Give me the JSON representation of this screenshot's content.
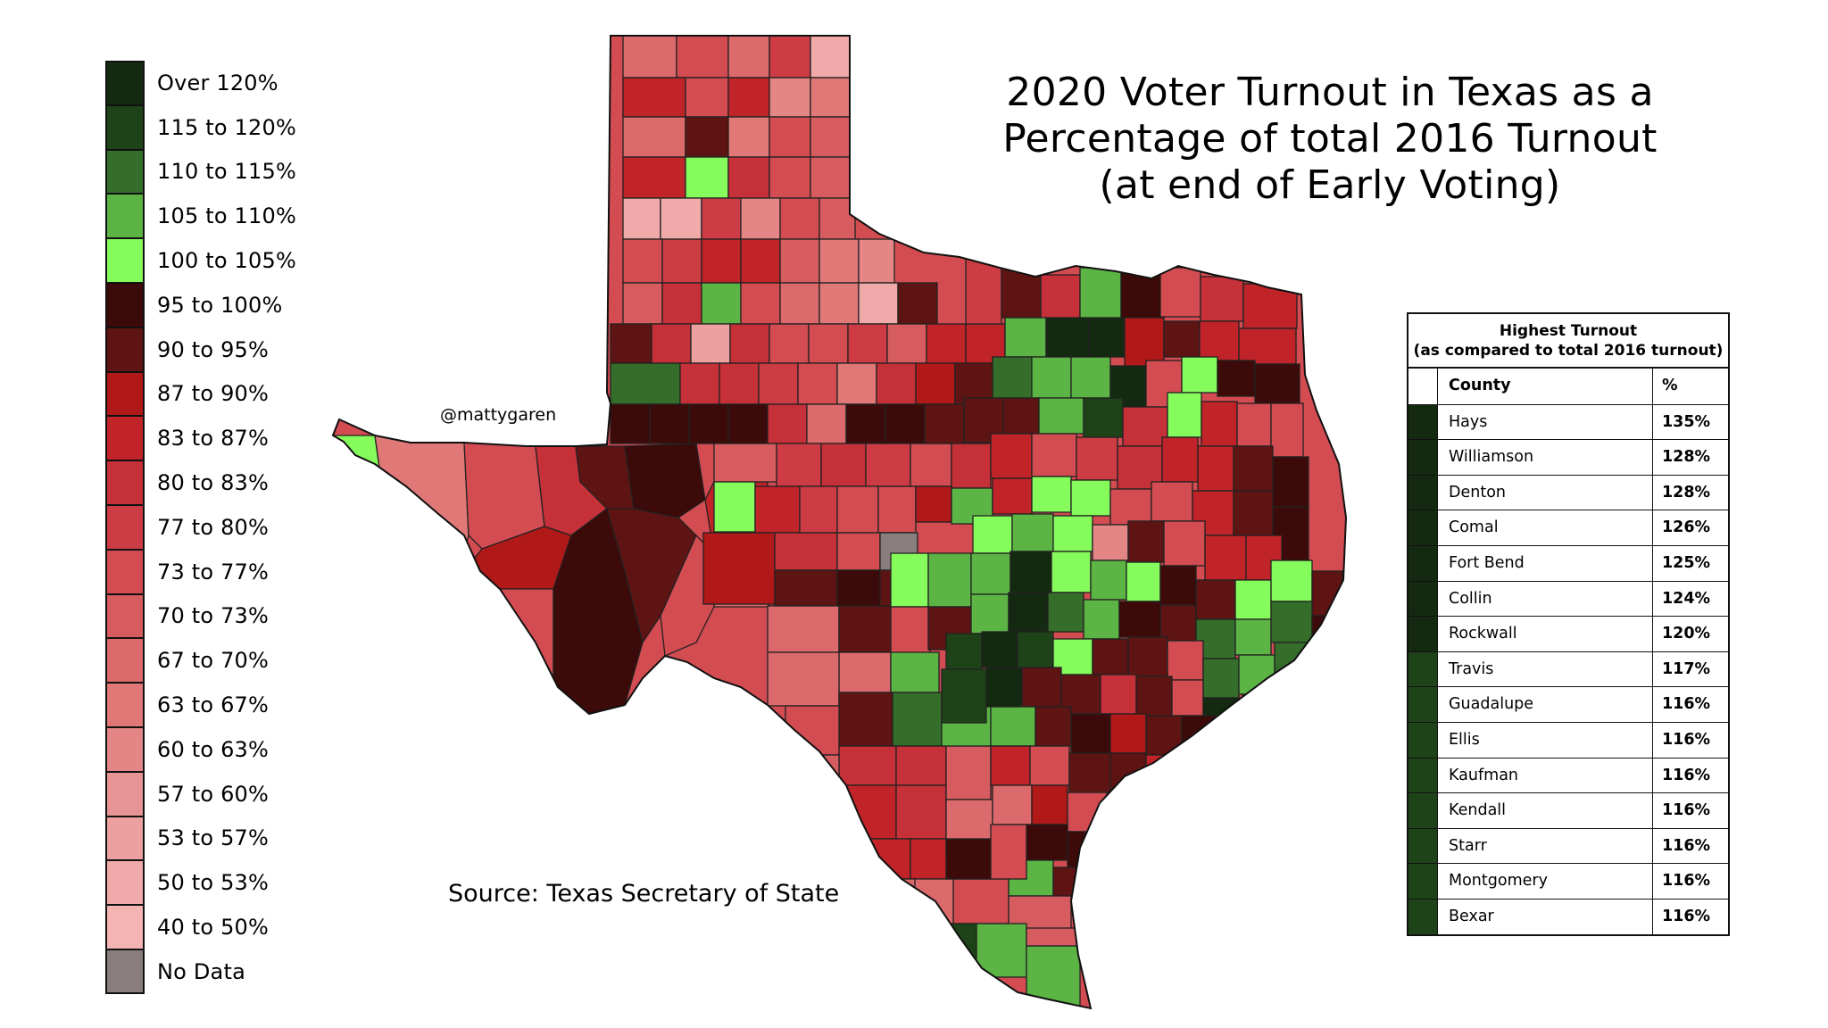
{
  "title": {
    "line1": "2020 Voter Turnout in Texas as a",
    "line2": "Percentage of total 2016 Turnout",
    "line3": "(at end of Early Voting)"
  },
  "handle": "@mattygaren",
  "source": "Source: Texas Secretary of State",
  "legend": [
    {
      "label": "Over 120%",
      "color": "#142a10"
    },
    {
      "label": "115 to 120%",
      "color": "#1f4318"
    },
    {
      "label": "110 to 115%",
      "color": "#346e2a"
    },
    {
      "label": "105 to 110%",
      "color": "#5cb444"
    },
    {
      "label": "100 to 105%",
      "color": "#86fc5c"
    },
    {
      "label": "95 to 100%",
      "color": "#3c0a08"
    },
    {
      "label": "90 to 95%",
      "color": "#5e1412"
    },
    {
      "label": "87 to 90%",
      "color": "#b11818"
    },
    {
      "label": "83 to 87%",
      "color": "#c02428"
    },
    {
      "label": "80 to 83%",
      "color": "#c63038"
    },
    {
      "label": "77 to 80%",
      "color": "#cd3c44"
    },
    {
      "label": "73 to 77%",
      "color": "#d24c52"
    },
    {
      "label": "70 to 73%",
      "color": "#d65c60"
    },
    {
      "label": "67 to 70%",
      "color": "#dc6a6c"
    },
    {
      "label": "63 to 67%",
      "color": "#e07878"
    },
    {
      "label": "60 to 63%",
      "color": "#e48686"
    },
    {
      "label": "57 to 60%",
      "color": "#e89494"
    },
    {
      "label": "53 to 57%",
      "color": "#eca0a0"
    },
    {
      "label": "50 to 53%",
      "color": "#f0aaaa"
    },
    {
      "label": "40 to 50%",
      "color": "#f4b4b4"
    },
    {
      "label": "No Data",
      "color": "#8a7d7d"
    }
  ],
  "table": {
    "heading_line1": "Highest Turnout",
    "heading_line2": "(as compared to total 2016 turnout)",
    "col_county": "County",
    "col_pct": "%",
    "rows": [
      {
        "county": "Hays",
        "pct": "135%",
        "color": "#142a10"
      },
      {
        "county": "Williamson",
        "pct": "128%",
        "color": "#142a10"
      },
      {
        "county": "Denton",
        "pct": "128%",
        "color": "#142a10"
      },
      {
        "county": "Comal",
        "pct": "126%",
        "color": "#142a10"
      },
      {
        "county": "Fort Bend",
        "pct": "125%",
        "color": "#142a10"
      },
      {
        "county": "Collin",
        "pct": "124%",
        "color": "#142a10"
      },
      {
        "county": "Rockwall",
        "pct": "120%",
        "color": "#142a10"
      },
      {
        "county": "Travis",
        "pct": "117%",
        "color": "#1f4318"
      },
      {
        "county": "Guadalupe",
        "pct": "116%",
        "color": "#1f4318"
      },
      {
        "county": "Ellis",
        "pct": "116%",
        "color": "#1f4318"
      },
      {
        "county": "Kaufman",
        "pct": "116%",
        "color": "#1f4318"
      },
      {
        "county": "Kendall",
        "pct": "116%",
        "color": "#1f4318"
      },
      {
        "county": "Starr",
        "pct": "116%",
        "color": "#1f4318"
      },
      {
        "county": "Montgomery",
        "pct": "116%",
        "color": "#1f4318"
      },
      {
        "county": "Bexar",
        "pct": "116%",
        "color": "#1f4318"
      }
    ]
  }
}
